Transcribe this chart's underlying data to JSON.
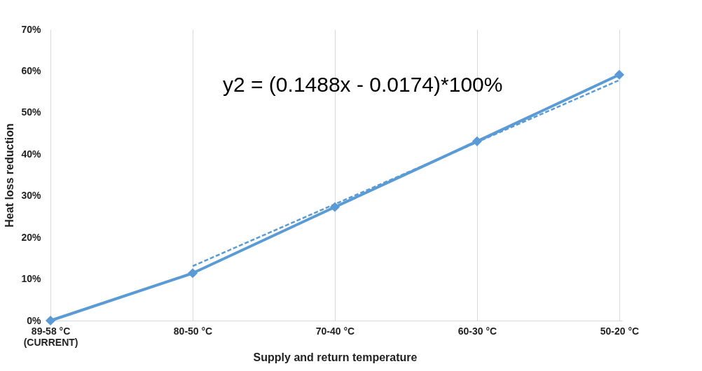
{
  "chart_data": {
    "type": "line",
    "xlabel": "Supply and return temperature",
    "ylabel": "Heat loss reduction",
    "categories": [
      "89-58 °C\n(CURRENT)",
      "80-50 °C",
      "70-40 °C",
      "60-30 °C",
      "50-20 °C"
    ],
    "series": [
      {
        "color": "#5b9bd5",
        "values": [
          0,
          11.4,
          27.3,
          43.1,
          59.1
        ],
        "marker": "diamond",
        "line_style": "solid"
      },
      {
        "type": "line",
        "color": "#5b9bd5",
        "values": [
          null,
          13.1,
          28.0,
          42.9,
          57.8
        ],
        "marker": "none",
        "line_style": "dashed"
      }
    ],
    "ylim": [
      0,
      70
    ],
    "yticks": [
      {
        "value": 0,
        "label": "0%"
      },
      {
        "value": 10,
        "label": "10%"
      },
      {
        "value": 20,
        "label": "20%"
      },
      {
        "value": 30,
        "label": "30%"
      },
      {
        "value": 40,
        "label": "40%"
      },
      {
        "value": 50,
        "label": "50%"
      },
      {
        "value": 60,
        "label": "60%"
      },
      {
        "value": 70,
        "label": "70%"
      }
    ],
    "grid": "x",
    "annotations": [
      "y2 = (0.1488x - 0.0174)*100%"
    ]
  }
}
